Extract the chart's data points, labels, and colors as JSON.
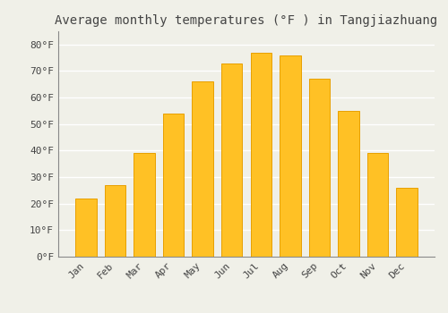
{
  "title": "Average monthly temperatures (°F ) in Tangjiazhuang",
  "months": [
    "Jan",
    "Feb",
    "Mar",
    "Apr",
    "May",
    "Jun",
    "Jul",
    "Aug",
    "Sep",
    "Oct",
    "Nov",
    "Dec"
  ],
  "values": [
    22,
    27,
    39,
    54,
    66,
    73,
    77,
    76,
    67,
    55,
    39,
    26
  ],
  "bar_color": "#FFC125",
  "bar_edge_color": "#E8A000",
  "background_color": "#F0F0E8",
  "grid_color": "#FFFFFF",
  "text_color": "#444444",
  "ylim": [
    0,
    85
  ],
  "yticks": [
    0,
    10,
    20,
    30,
    40,
    50,
    60,
    70,
    80
  ],
  "ytick_labels": [
    "0°F",
    "10°F",
    "20°F",
    "30°F",
    "40°F",
    "50°F",
    "60°F",
    "70°F",
    "80°F"
  ],
  "title_fontsize": 10,
  "tick_fontsize": 8,
  "font_family": "monospace",
  "bar_width": 0.72
}
